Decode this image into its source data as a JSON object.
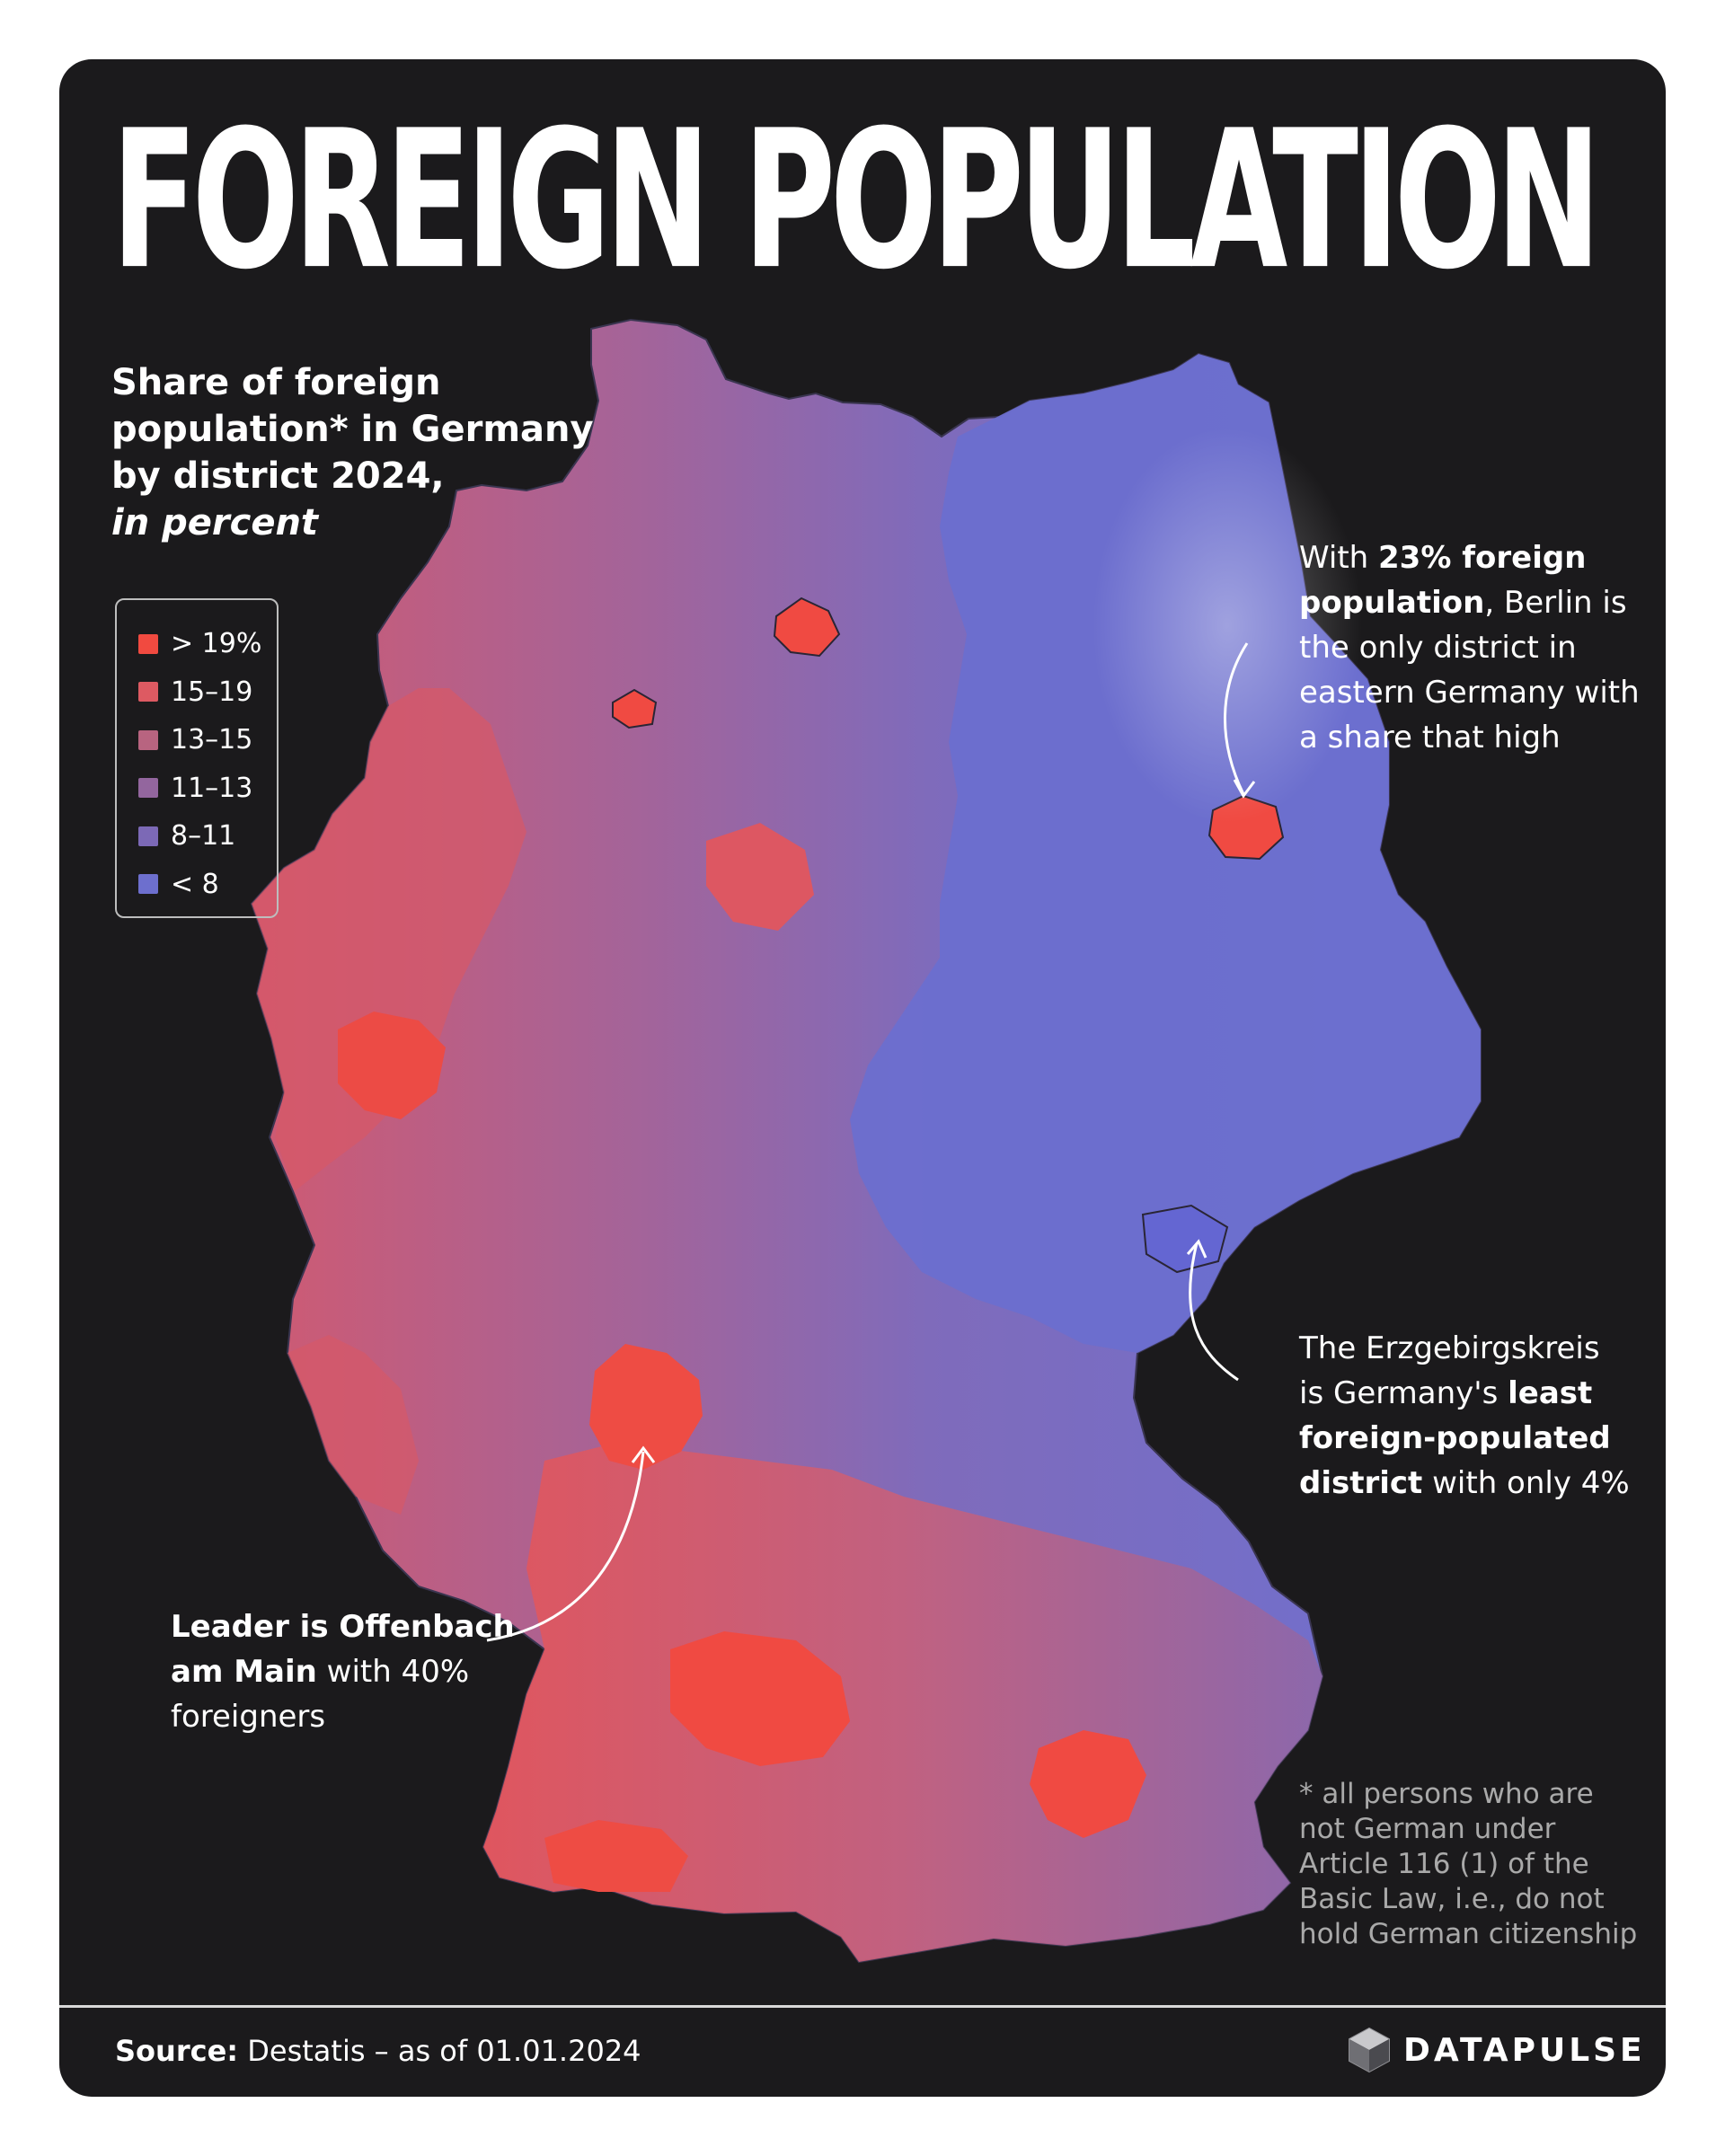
{
  "title": "FOREIGN POPULATION",
  "subtitle": {
    "line1": "Share of foreign",
    "line2": "population* in Germany",
    "line3": "by district 2024,",
    "line4": "in percent"
  },
  "legend": {
    "items": [
      {
        "label": "> 19%",
        "color": "#f14a40"
      },
      {
        "label": "15–19",
        "color": "#dd5a62"
      },
      {
        "label": "13–15",
        "color": "#b86480"
      },
      {
        "label": "11–13",
        "color": "#93669e"
      },
      {
        "label": "8–11",
        "color": "#7c69b6"
      },
      {
        "label": "< 8",
        "color": "#6d6fce"
      }
    ]
  },
  "annotations": {
    "berlin": {
      "line1_pre": "With ",
      "line1_bold": "23% foreign",
      "line2_bold": "population",
      "line2_rest": ", Berlin is",
      "line3": "the only district in",
      "line4": "eastern Germany with",
      "line5": "a share that high"
    },
    "erzgebirge": {
      "line1": "The Erzgebirgskreis",
      "line2_pre": "is Germany's ",
      "line2_bold": "least",
      "line3_bold": "foreign-populated",
      "line4_bold": "district",
      "line4_rest": " with only 4%"
    },
    "offenbach": {
      "line1_bold": "Leader is Offenbach",
      "line2_bold": "am Main",
      "line2_rest": " with 40%",
      "line3": "foreigners"
    }
  },
  "footnote": {
    "line1": "* all persons who are",
    "line2": "not German under",
    "line3": "Article 116 (1) of the",
    "line4": "Basic Law, i.e., do not",
    "line5": "hold German citizenship"
  },
  "source": {
    "label": "Source:",
    "text": " Destatis – as of 01.01.2024"
  },
  "brand": {
    "name": "DATAPULSE",
    "logo_icon": "hexagon-cube-icon"
  }
}
